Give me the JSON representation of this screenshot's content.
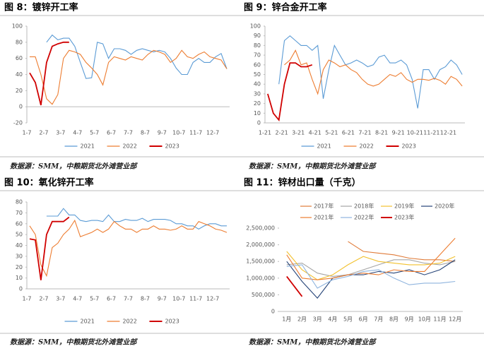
{
  "chart_data": [
    {
      "type": "line",
      "title": "图 8：镀锌开工率",
      "source": "数据源：SMM，中粮期货北外滩营业部",
      "categories": [
        "1-7",
        null,
        null,
        "2-7",
        null,
        null,
        "3-7",
        null,
        null,
        "4-7",
        null,
        null,
        "5-7",
        null,
        null,
        "6-7",
        null,
        null,
        "7-7",
        null,
        null,
        "8-7",
        null,
        null,
        "9-7",
        null,
        null,
        "10-7",
        null,
        null,
        "11-7",
        null,
        null,
        "12-7",
        null,
        null
      ],
      "ylim": [
        -20,
        100
      ],
      "yticks": [
        -20,
        0,
        20,
        40,
        60,
        80,
        100
      ],
      "legend": "bottom",
      "series": [
        {
          "name": "2021",
          "color": "#5b9bd5",
          "values": [
            null,
            null,
            null,
            80,
            89,
            83,
            85,
            85,
            75,
            55,
            35,
            36,
            80,
            78,
            60,
            72,
            72,
            70,
            65,
            70,
            72,
            70,
            68,
            70,
            68,
            60,
            48,
            40,
            40,
            55,
            60,
            55,
            55,
            62,
            66,
            47
          ]
        },
        {
          "name": "2022",
          "color": "#ed7d31",
          "values": [
            62,
            62,
            40,
            10,
            3,
            15,
            60,
            70,
            68,
            65,
            55,
            48,
            40,
            27,
            55,
            62,
            60,
            58,
            62,
            60,
            58,
            65,
            70,
            68,
            65,
            55,
            60,
            70,
            62,
            60,
            65,
            68,
            62,
            60,
            58,
            47
          ]
        },
        {
          "name": "2023",
          "color": "#d00000",
          "values": [
            42,
            30,
            2,
            55,
            75,
            78,
            80,
            80,
            null,
            null,
            null,
            null,
            null,
            null,
            null,
            null,
            null,
            null,
            null,
            null,
            null,
            null,
            null,
            null,
            null,
            null,
            null,
            null,
            null,
            null,
            null,
            null,
            null,
            null,
            null,
            null
          ]
        }
      ]
    },
    {
      "type": "line",
      "title": "图 9：锌合金开工率",
      "source": "数据源：SMM，中粮期货北外滩营业部",
      "categories": [
        "1-21",
        null,
        null,
        "2-21",
        null,
        null,
        "3-21",
        null,
        null,
        "4-21",
        null,
        null,
        "5-21",
        null,
        null,
        "6-21",
        null,
        null,
        "7-21",
        null,
        null,
        "8-21",
        null,
        null,
        "9-21",
        null,
        null,
        "10-21",
        null,
        null,
        "11-21",
        null,
        null,
        "12-21",
        null,
        null
      ],
      "ylim": [
        0,
        100
      ],
      "yticks": [
        0,
        10,
        20,
        30,
        40,
        50,
        60,
        70,
        80,
        90,
        100
      ],
      "legend": "bottom",
      "series": [
        {
          "name": "2021",
          "color": "#5b9bd5",
          "values": [
            null,
            null,
            40,
            85,
            90,
            85,
            80,
            80,
            75,
            80,
            25,
            55,
            80,
            70,
            60,
            62,
            65,
            62,
            58,
            60,
            68,
            70,
            62,
            62,
            65,
            60,
            45,
            15,
            55,
            55,
            45,
            55,
            58,
            65,
            60,
            50
          ]
        },
        {
          "name": "2022",
          "color": "#ed7d31",
          "values": [
            null,
            null,
            null,
            60,
            65,
            75,
            60,
            62,
            45,
            30,
            55,
            65,
            62,
            58,
            60,
            55,
            52,
            45,
            40,
            38,
            40,
            45,
            50,
            48,
            52,
            45,
            42,
            45,
            45,
            44,
            46,
            44,
            40,
            48,
            45,
            38
          ]
        },
        {
          "name": "2023",
          "color": "#d00000",
          "values": [
            30,
            10,
            3,
            40,
            62,
            62,
            58,
            58,
            60,
            null,
            null,
            null,
            null,
            null,
            null,
            null,
            null,
            null,
            null,
            null,
            null,
            null,
            null,
            null,
            null,
            null,
            null,
            null,
            null,
            null,
            null,
            null,
            null,
            null,
            null,
            null
          ]
        }
      ]
    },
    {
      "type": "line",
      "title": "图 10：氧化锌开工率",
      "source": "数据源：SMM，中粮期货北外滩营业部",
      "categories": [
        "1-7",
        null,
        null,
        "2-7",
        null,
        null,
        "3-7",
        null,
        null,
        "4-7",
        null,
        null,
        "5-7",
        null,
        null,
        "6-7",
        null,
        null,
        "7-7",
        null,
        null,
        "8-7",
        null,
        null,
        "9-7",
        null,
        null,
        "10-7",
        null,
        null,
        "11-7",
        null,
        null,
        "12-7",
        null,
        null
      ],
      "ylim": [
        0,
        80
      ],
      "yticks": [
        0,
        10,
        20,
        30,
        40,
        50,
        60,
        70,
        80
      ],
      "legend": "bottom",
      "series": [
        {
          "name": "2021",
          "color": "#5b9bd5",
          "values": [
            null,
            null,
            null,
            67,
            67,
            67,
            74,
            68,
            68,
            63,
            62,
            63,
            63,
            62,
            68,
            62,
            62,
            64,
            63,
            63,
            65,
            62,
            64,
            64,
            64,
            63,
            60,
            60,
            58,
            58,
            55,
            58,
            60,
            60,
            58,
            58
          ]
        },
        {
          "name": "2022",
          "color": "#ed7d31",
          "values": [
            58,
            50,
            22,
            12,
            38,
            42,
            50,
            55,
            63,
            48,
            50,
            52,
            55,
            52,
            55,
            62,
            58,
            55,
            55,
            52,
            55,
            55,
            58,
            55,
            55,
            54,
            55,
            58,
            55,
            55,
            62,
            60,
            58,
            55,
            54,
            52
          ]
        },
        {
          "name": "2023",
          "color": "#d00000",
          "values": [
            46,
            45,
            8,
            50,
            62,
            62,
            62,
            66,
            null,
            null,
            null,
            null,
            null,
            null,
            null,
            null,
            null,
            null,
            null,
            null,
            null,
            null,
            null,
            null,
            null,
            null,
            null,
            null,
            null,
            null,
            null,
            null,
            null,
            null,
            null,
            null
          ]
        }
      ]
    },
    {
      "type": "line",
      "title": "图 11：锌材出口量（千克）",
      "source": "数据源：SMM，中粮期货北外滩营业部",
      "categories": [
        "1月",
        "2月",
        "3月",
        "4月",
        "5月",
        "6月",
        "7月",
        "8月",
        "9月",
        "10月",
        "11月",
        "12月"
      ],
      "ylim": [
        0,
        2500000
      ],
      "yticks": [
        0,
        {
          "value": 500000,
          "label": "500,000"
        },
        {
          "value": 1000000,
          "label": "1,000,000"
        },
        {
          "value": 1500000,
          "label": "1,500,000"
        },
        {
          "value": 2000000,
          "label": "2,000,000"
        },
        {
          "value": 2500000,
          "label": "2,500,000"
        }
      ],
      "legend": "top",
      "series": [
        {
          "name": "2017年",
          "color": "#e07b39",
          "values": [
            null,
            null,
            null,
            null,
            2100000,
            1800000,
            1750000,
            1700000,
            1600000,
            1550000,
            1550000,
            1500000
          ]
        },
        {
          "name": "2018年",
          "color": "#a5a5a5",
          "values": [
            1400000,
            1450000,
            1150000,
            1050000,
            1100000,
            1250000,
            1400000,
            1550000,
            1550000,
            1450000,
            1400000,
            1500000
          ]
        },
        {
          "name": "2019年",
          "color": "#f2c12e",
          "values": [
            1800000,
            1250000,
            950000,
            1100000,
            1400000,
            1650000,
            1500000,
            1450000,
            1400000,
            1400000,
            1450000,
            1650000
          ]
        },
        {
          "name": "2020年",
          "color": "#264478",
          "values": [
            1500000,
            900000,
            400000,
            1000000,
            1100000,
            1100000,
            1200000,
            1150000,
            1250000,
            1100000,
            1250000,
            1550000
          ]
        },
        {
          "name": "2021年",
          "color": "#ed7d31",
          "values": [
            1700000,
            1000000,
            950000,
            1000000,
            1100000,
            1150000,
            1100000,
            1250000,
            1200000,
            1200000,
            1700000,
            2200000
          ]
        },
        {
          "name": "2022年",
          "color": "#8fb4de",
          "values": [
            1350000,
            1400000,
            700000,
            950000,
            1050000,
            1200000,
            1250000,
            1000000,
            800000,
            850000,
            850000,
            900000
          ]
        },
        {
          "name": "2023年",
          "color": "#d00000",
          "values": [
            1050000,
            450000,
            null,
            null,
            null,
            null,
            null,
            null,
            null,
            null,
            null,
            null
          ]
        }
      ]
    }
  ]
}
